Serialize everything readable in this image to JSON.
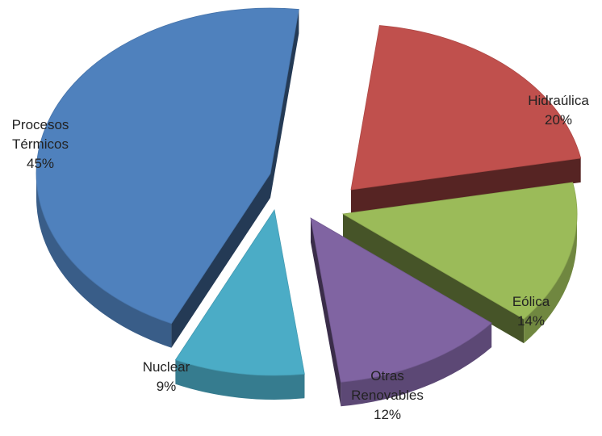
{
  "chart_data": {
    "type": "pie",
    "style": "3d-exploded",
    "title": "",
    "unit": "%",
    "slices": [
      {
        "id": "hidraulica",
        "label_lines": [
          "Hidraúlica"
        ],
        "value": 20,
        "value_label": "20%",
        "color": "#C0504D"
      },
      {
        "id": "eolica",
        "label_lines": [
          "Eólica"
        ],
        "value": 14,
        "value_label": "14%",
        "color": "#9BBB59"
      },
      {
        "id": "otras-renovables",
        "label_lines": [
          "Otras",
          "Renovables"
        ],
        "value": 12,
        "value_label": "12%",
        "color": "#8064A2"
      },
      {
        "id": "nuclear",
        "label_lines": [
          "Nuclear"
        ],
        "value": 9,
        "value_label": "9%",
        "color": "#4BACC6"
      },
      {
        "id": "procesos-termicos",
        "label_lines": [
          "Procesos",
          "Térmicos"
        ],
        "value": 45,
        "value_label": "45%",
        "color": "#4F81BD"
      }
    ]
  }
}
